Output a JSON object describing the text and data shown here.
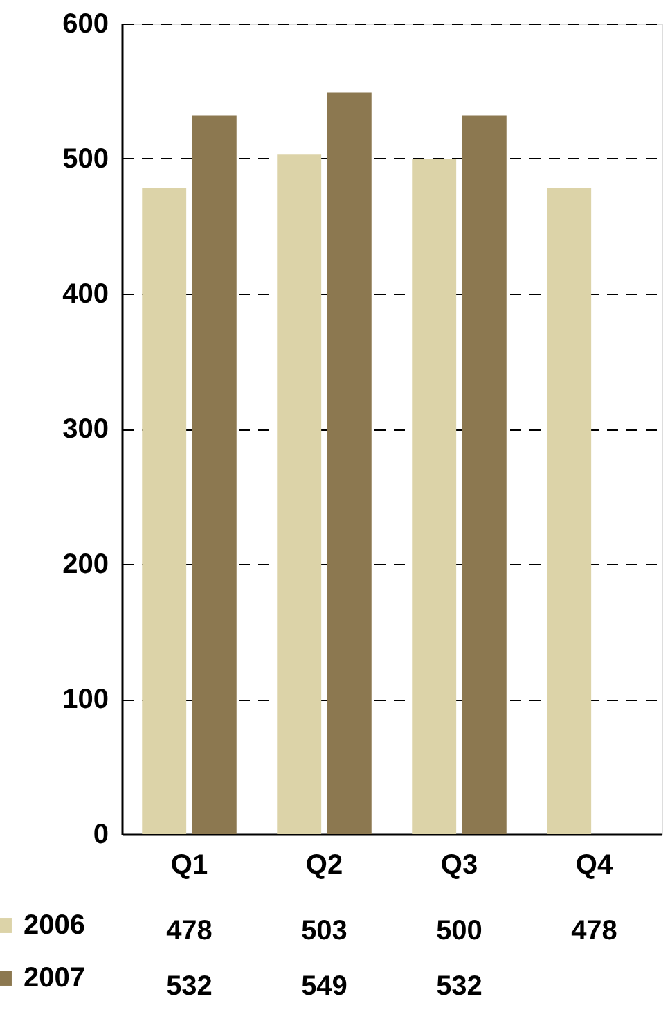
{
  "chart_data": {
    "type": "bar",
    "categories": [
      "Q1",
      "Q2",
      "Q3",
      "Q4"
    ],
    "series": [
      {
        "name": "2006",
        "color": "#dcd3a8",
        "values": [
          478,
          503,
          500,
          478
        ]
      },
      {
        "name": "2007",
        "color": "#8c7850",
        "values": [
          532,
          549,
          532,
          null
        ]
      }
    ],
    "ylim": [
      0,
      600
    ],
    "yticks": [
      0,
      100,
      200,
      300,
      400,
      500,
      600
    ],
    "grid": "y",
    "legend": "bottom",
    "data_labels": true
  }
}
